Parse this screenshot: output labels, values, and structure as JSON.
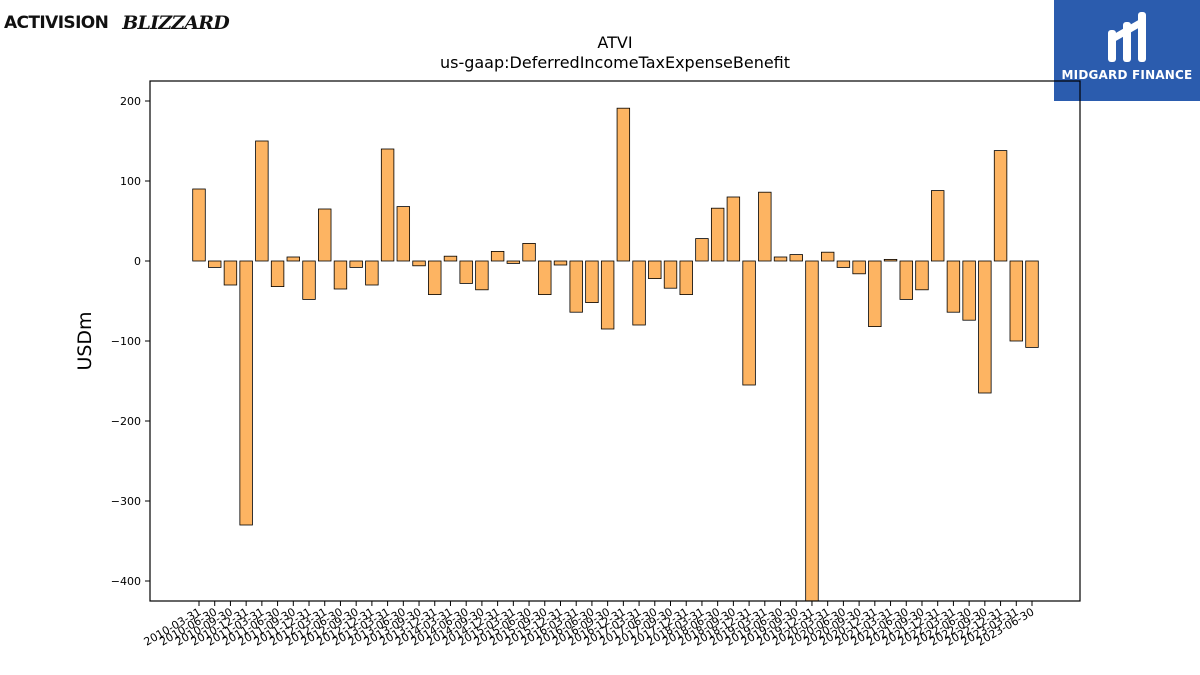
{
  "logos": {
    "left_primary": "ACTIVISION",
    "left_secondary": "BLIZZARD",
    "right_text": "MIDGARD FINANCE"
  },
  "colors": {
    "bar_fill": "#fdb462",
    "bar_stroke": "#000000",
    "logo_right_bg": "#2b5cae"
  },
  "chart_data": {
    "type": "bar",
    "title": "ATVI",
    "subtitle": "us-gaap:DeferredIncomeTaxExpenseBenefit",
    "xlabel": "",
    "ylabel": "USDm",
    "ylim": [
      -425,
      225
    ],
    "yticks": [
      -400,
      -300,
      -200,
      -100,
      0,
      100,
      200
    ],
    "grid": false,
    "categories": [
      "2010-03-31",
      "2010-06-30",
      "2010-09-30",
      "2010-12-31",
      "2011-03-31",
      "2011-06-30",
      "2011-09-30",
      "2011-12-31",
      "2012-03-31",
      "2012-06-30",
      "2012-09-30",
      "2012-12-31",
      "2013-03-31",
      "2013-06-30",
      "2013-09-30",
      "2013-12-31",
      "2014-03-31",
      "2014-06-30",
      "2014-09-30",
      "2014-12-31",
      "2015-03-31",
      "2015-06-30",
      "2015-09-30",
      "2015-12-31",
      "2016-03-31",
      "2016-06-30",
      "2016-09-30",
      "2016-12-31",
      "2017-03-31",
      "2017-06-30",
      "2017-09-30",
      "2017-12-31",
      "2018-03-31",
      "2018-06-30",
      "2018-09-30",
      "2018-12-31",
      "2019-03-31",
      "2019-06-30",
      "2019-09-30",
      "2019-12-31",
      "2020-03-31",
      "2020-06-30",
      "2020-09-30",
      "2020-12-31",
      "2021-03-31",
      "2021-06-30",
      "2021-09-30",
      "2021-12-31",
      "2022-03-31",
      "2022-06-30",
      "2022-09-30",
      "2022-12-31",
      "2023-03-31",
      "2023-06-30"
    ],
    "values": [
      90,
      -8,
      -30,
      -330,
      150,
      -32,
      5,
      -48,
      65,
      -35,
      -8,
      -30,
      140,
      68,
      -6,
      -42,
      6,
      -28,
      -36,
      12,
      -3,
      22,
      -42,
      -5,
      -64,
      -52,
      -85,
      191,
      -80,
      -22,
      -34,
      -42,
      28,
      66,
      80,
      -155,
      86,
      5,
      8,
      -425,
      11,
      -8,
      -16,
      -82,
      2,
      -48,
      -36,
      88,
      -64,
      -74,
      -165,
      138,
      -100,
      -108
    ]
  }
}
